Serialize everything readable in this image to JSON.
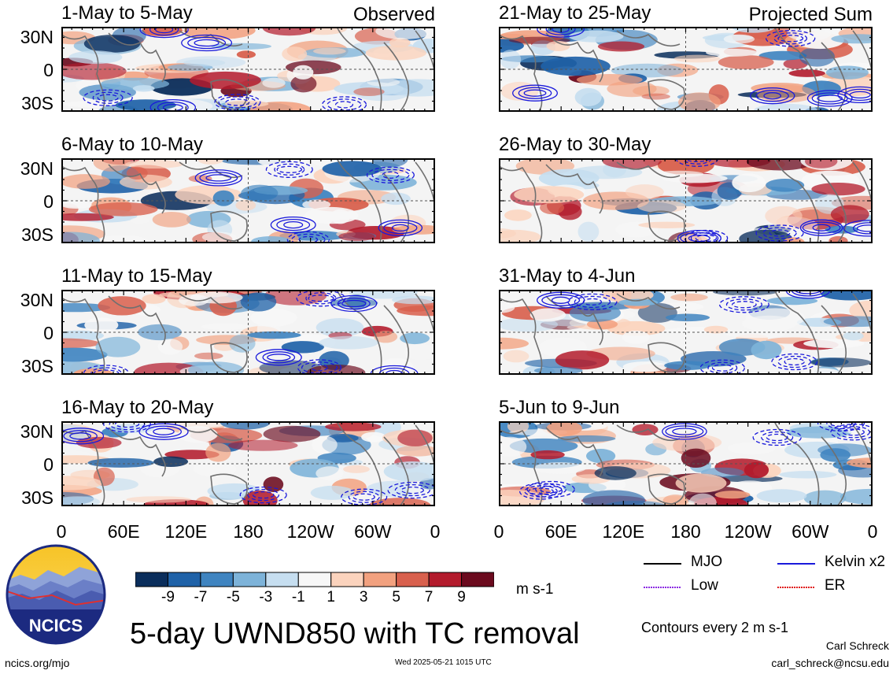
{
  "chart_data": {
    "type": "heatmap",
    "title": "5-day UWND850 with TC removal",
    "units": "m s-1",
    "variable": "UWND850",
    "x_ticks": [
      "0",
      "60E",
      "120E",
      "180",
      "120W",
      "60W",
      "0"
    ],
    "y_ticks": [
      "30N",
      "0",
      "30S"
    ],
    "columns": [
      {
        "tag": "Observed",
        "panels": [
          "1-May to 5-May",
          "6-May to 10-May",
          "11-May to 15-May",
          "16-May to 20-May"
        ]
      },
      {
        "tag": "Projected Sum",
        "panels": [
          "21-May to 25-May",
          "26-May to 30-May",
          "31-May to 4-Jun",
          "5-Jun to 9-Jun"
        ]
      }
    ],
    "colorbar": {
      "labels": [
        "-9",
        "-7",
        "-5",
        "-3",
        "-1",
        "1",
        "3",
        "5",
        "7",
        "9"
      ],
      "colors": [
        "#0b2e5c",
        "#1f62a8",
        "#3f84c0",
        "#7db3d9",
        "#c6def0",
        "#f7f7f7",
        "#fbd3bd",
        "#f2a17f",
        "#d8604d",
        "#b31b2c",
        "#6b0a1e"
      ]
    },
    "contour_legend": [
      {
        "label": "MJO",
        "color": "#000000",
        "style": "solid"
      },
      {
        "label": "Kelvin x2",
        "color": "#1a1adb",
        "style": "solid"
      },
      {
        "label": "Low",
        "color": "#8b2be2",
        "style": "dotted"
      },
      {
        "label": "ER",
        "color": "#e01b1b",
        "style": "dotted"
      }
    ],
    "contour_note": "Contours every 2 m s-1"
  },
  "logo": {
    "text": "NCICS"
  },
  "footer": {
    "site": "ncics.org/mjo",
    "timestamp": "Wed 2025-05-21 1015 UTC",
    "author": "Carl Schreck",
    "email": "carl_schreck@ncsu.edu"
  }
}
